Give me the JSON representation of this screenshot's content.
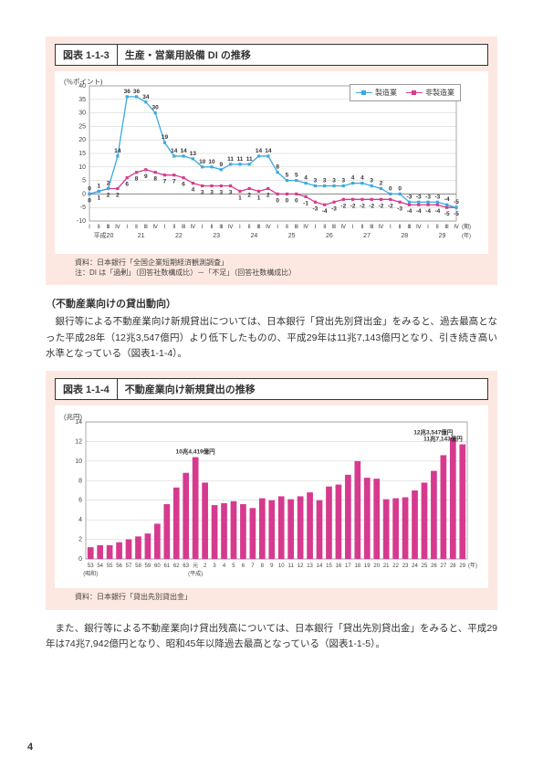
{
  "figure1": {
    "num": "図表 1-1-3",
    "name": "生産・営業用設備 DI の推移",
    "y_unit": "(％ポイント)",
    "ylim": [
      -10,
      40
    ],
    "ytick_step": 5,
    "legend": {
      "s1": "製造業",
      "s2": "非製造業"
    },
    "colors": {
      "s1": "#3ba9e0",
      "s2": "#d63a8e",
      "grid": "#cccccc",
      "bg": "#ffffff"
    },
    "quarters": [
      "Ⅰ",
      "Ⅱ",
      "Ⅲ",
      "Ⅳ"
    ],
    "years": [
      "平成20",
      "21",
      "22",
      "23",
      "24",
      "25",
      "26",
      "27",
      "28",
      "29"
    ],
    "x_axis_suffix_top": "(期)",
    "x_axis_suffix_bottom": "(年)",
    "s1_values": [
      0,
      1,
      2,
      14,
      36,
      36,
      34,
      30,
      19,
      14,
      14,
      13,
      10,
      10,
      9,
      11,
      11,
      11,
      14,
      14,
      8,
      5,
      5,
      4,
      3,
      3,
      3,
      3,
      4,
      4,
      3,
      2,
      0,
      0,
      -3,
      -3,
      -3,
      -3,
      -4,
      -5
    ],
    "s2_values": [
      0,
      1,
      2,
      2,
      6,
      8,
      9,
      8,
      7,
      7,
      6,
      4,
      3,
      3,
      3,
      3,
      1,
      2,
      1,
      2,
      0,
      0,
      0,
      -1,
      -3,
      -4,
      -3,
      -2,
      -2,
      -2,
      -2,
      -2,
      -2,
      -3,
      -4,
      -4,
      -4,
      -4,
      -5,
      -5
    ],
    "source_line1": "資料：日本銀行「全国企業短期経済観測調査」",
    "source_line2": "注：DI は「過剰」（回答社数構成比）－「不足」（回答社数構成比）"
  },
  "mid": {
    "heading": "（不動産業向けの貸出動向）",
    "para": "銀行等による不動産業向け新規貸出については、日本銀行「貸出先別貸出金」をみると、過去最高となった平成28年（12兆3,547億円）より低下したものの、平成29年は11兆7,143億円となり、引き続き高い水準となっている（図表1-1-4）。"
  },
  "figure2": {
    "num": "図表 1-1-4",
    "name": "不動産業向け新規貸出の推移",
    "y_unit": "(兆円)",
    "ylim": [
      0,
      14
    ],
    "ytick_step": 2,
    "years": [
      "53",
      "54",
      "55",
      "56",
      "57",
      "58",
      "59",
      "60",
      "61",
      "62",
      "63",
      "元",
      "2",
      "3",
      "4",
      "5",
      "6",
      "7",
      "8",
      "9",
      "10",
      "11",
      "12",
      "13",
      "14",
      "15",
      "16",
      "17",
      "18",
      "19",
      "20",
      "21",
      "22",
      "23",
      "24",
      "25",
      "26",
      "27",
      "28",
      "29"
    ],
    "era_marks": [
      {
        "idx": 0,
        "label": "(昭和)"
      },
      {
        "idx": 11,
        "label": "(平成)"
      }
    ],
    "x_axis_suffix": "(年)",
    "values": [
      1.2,
      1.4,
      1.4,
      1.7,
      2.0,
      2.3,
      2.6,
      3.6,
      5.6,
      7.3,
      8.8,
      10.4,
      7.8,
      5.5,
      5.7,
      5.9,
      5.6,
      5.2,
      6.2,
      6.0,
      6.4,
      6.1,
      6.4,
      6.8,
      6.0,
      7.4,
      7.6,
      8.6,
      10.0,
      8.3,
      8.2,
      6.1,
      6.2,
      6.3,
      7.0,
      7.8,
      9.0,
      10.6,
      12.35,
      11.71
    ],
    "bar_color": "#d63a8e",
    "grid_color": "#cccccc",
    "annotations": [
      {
        "idx": 11,
        "text": "10兆4,419億円"
      },
      {
        "idx": 38,
        "text": "12兆3,547億円"
      },
      {
        "idx": 39,
        "text": "11兆7,143億円"
      }
    ],
    "source": "資料：日本銀行「貸出先別貸出金」"
  },
  "bottom_para": "また、銀行等による不動産業向け貸出残高については、日本銀行「貸出先別貸出金」をみると、平成29年は74兆7,942億円となり、昭和45年以降過去最高となっている（図表1-1-5）。",
  "page_number": "4"
}
